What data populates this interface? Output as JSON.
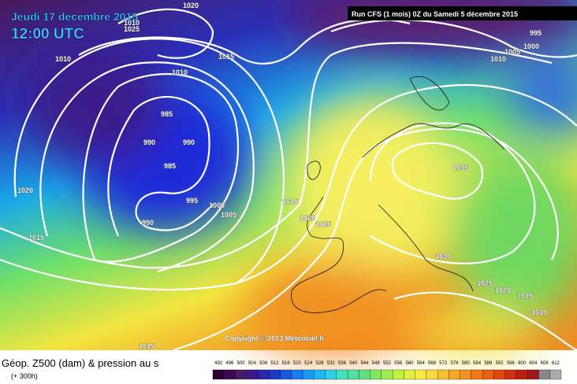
{
  "header": {
    "title": "Jeudi 17 decembre 2015",
    "time": "12:00 UTC",
    "run": "Run CFS (1 mois) 0Z du Samedi 5 décembre 2015"
  },
  "copyright": "Copyright © 2013 Meteociel.fr",
  "footer": {
    "caption": "Géop. Z500 (dam) & pression au s",
    "lead": "(+ 300h)"
  },
  "isobar_labels": [
    1020,
    1010,
    1025,
    1015,
    1010,
    1010,
    985,
    990,
    985,
    995,
    1000,
    1005,
    990,
    1020,
    1015,
    1015,
    1020,
    1025,
    1035,
    1030,
    995,
    1005,
    1000,
    1010,
    1025,
    1020,
    1015,
    1010,
    990,
    1015
  ],
  "scale": [
    492,
    496,
    500,
    504,
    508,
    512,
    516,
    520,
    524,
    528,
    532,
    536,
    540,
    544,
    548,
    552,
    556,
    560,
    564,
    568,
    572,
    576,
    580,
    584,
    588,
    592,
    596,
    600,
    604,
    608,
    612
  ]
}
